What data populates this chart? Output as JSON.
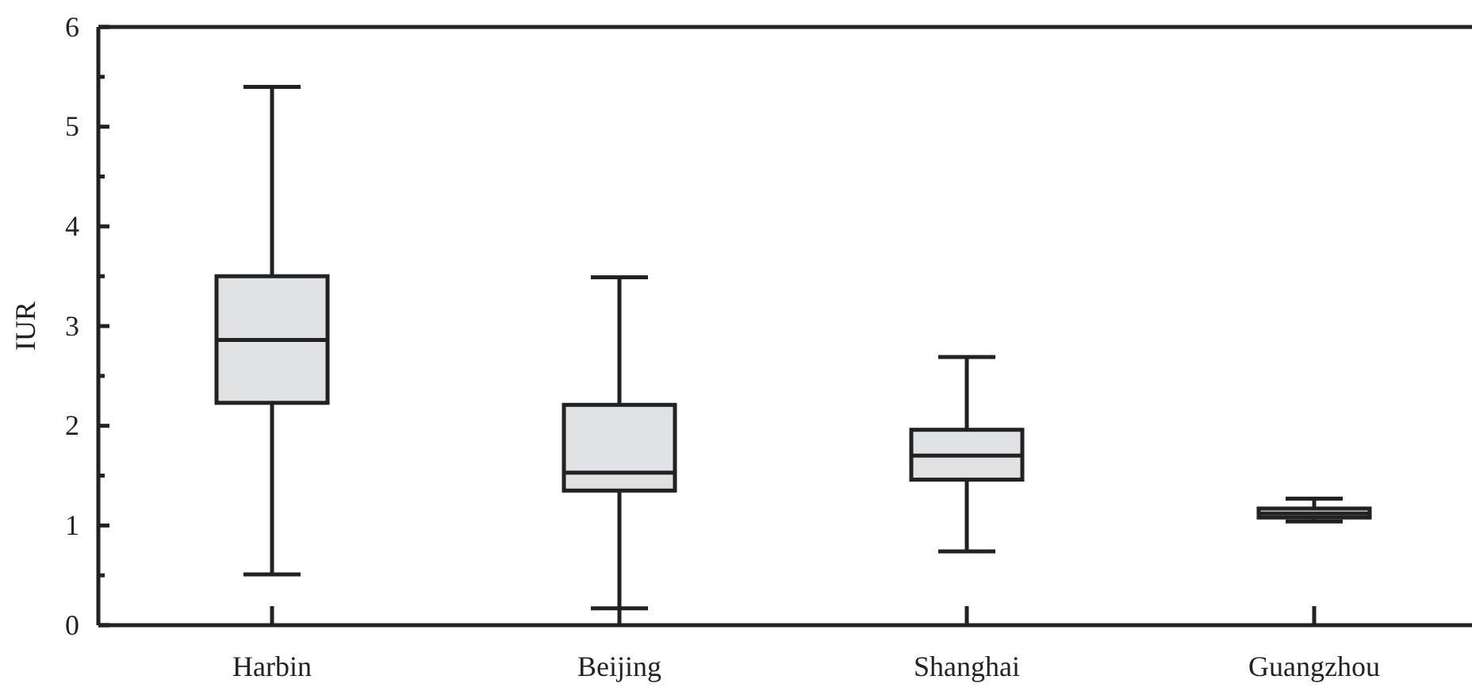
{
  "chart_data": {
    "type": "box",
    "ylabel": "IUR",
    "categories": [
      "Harbin",
      "Beijing",
      "Shanghai",
      "Guangzhou"
    ],
    "color": "#e0e1e3",
    "boxes": [
      {
        "low": 0.51,
        "q1": 2.23,
        "median": 2.86,
        "q3": 3.5,
        "high": 5.4
      },
      {
        "low": 0.17,
        "q1": 1.35,
        "median": 1.53,
        "q3": 2.21,
        "high": 3.49
      },
      {
        "low": 0.74,
        "q1": 1.46,
        "median": 1.7,
        "q3": 1.96,
        "high": 2.69
      },
      {
        "low": 1.04,
        "q1": 1.08,
        "median": 1.12,
        "q3": 1.17,
        "high": 1.27
      }
    ],
    "ylim": [
      0,
      6
    ],
    "yticks": [
      0,
      {
        "value": 0.5,
        "label": null
      },
      1,
      {
        "value": 1.5,
        "label": null
      },
      2,
      {
        "value": 2.5,
        "label": null
      },
      3,
      {
        "value": 3.5,
        "label": null
      },
      4,
      {
        "value": 4.5,
        "label": null
      },
      5,
      {
        "value": 5.5,
        "label": null
      },
      6
    ]
  }
}
